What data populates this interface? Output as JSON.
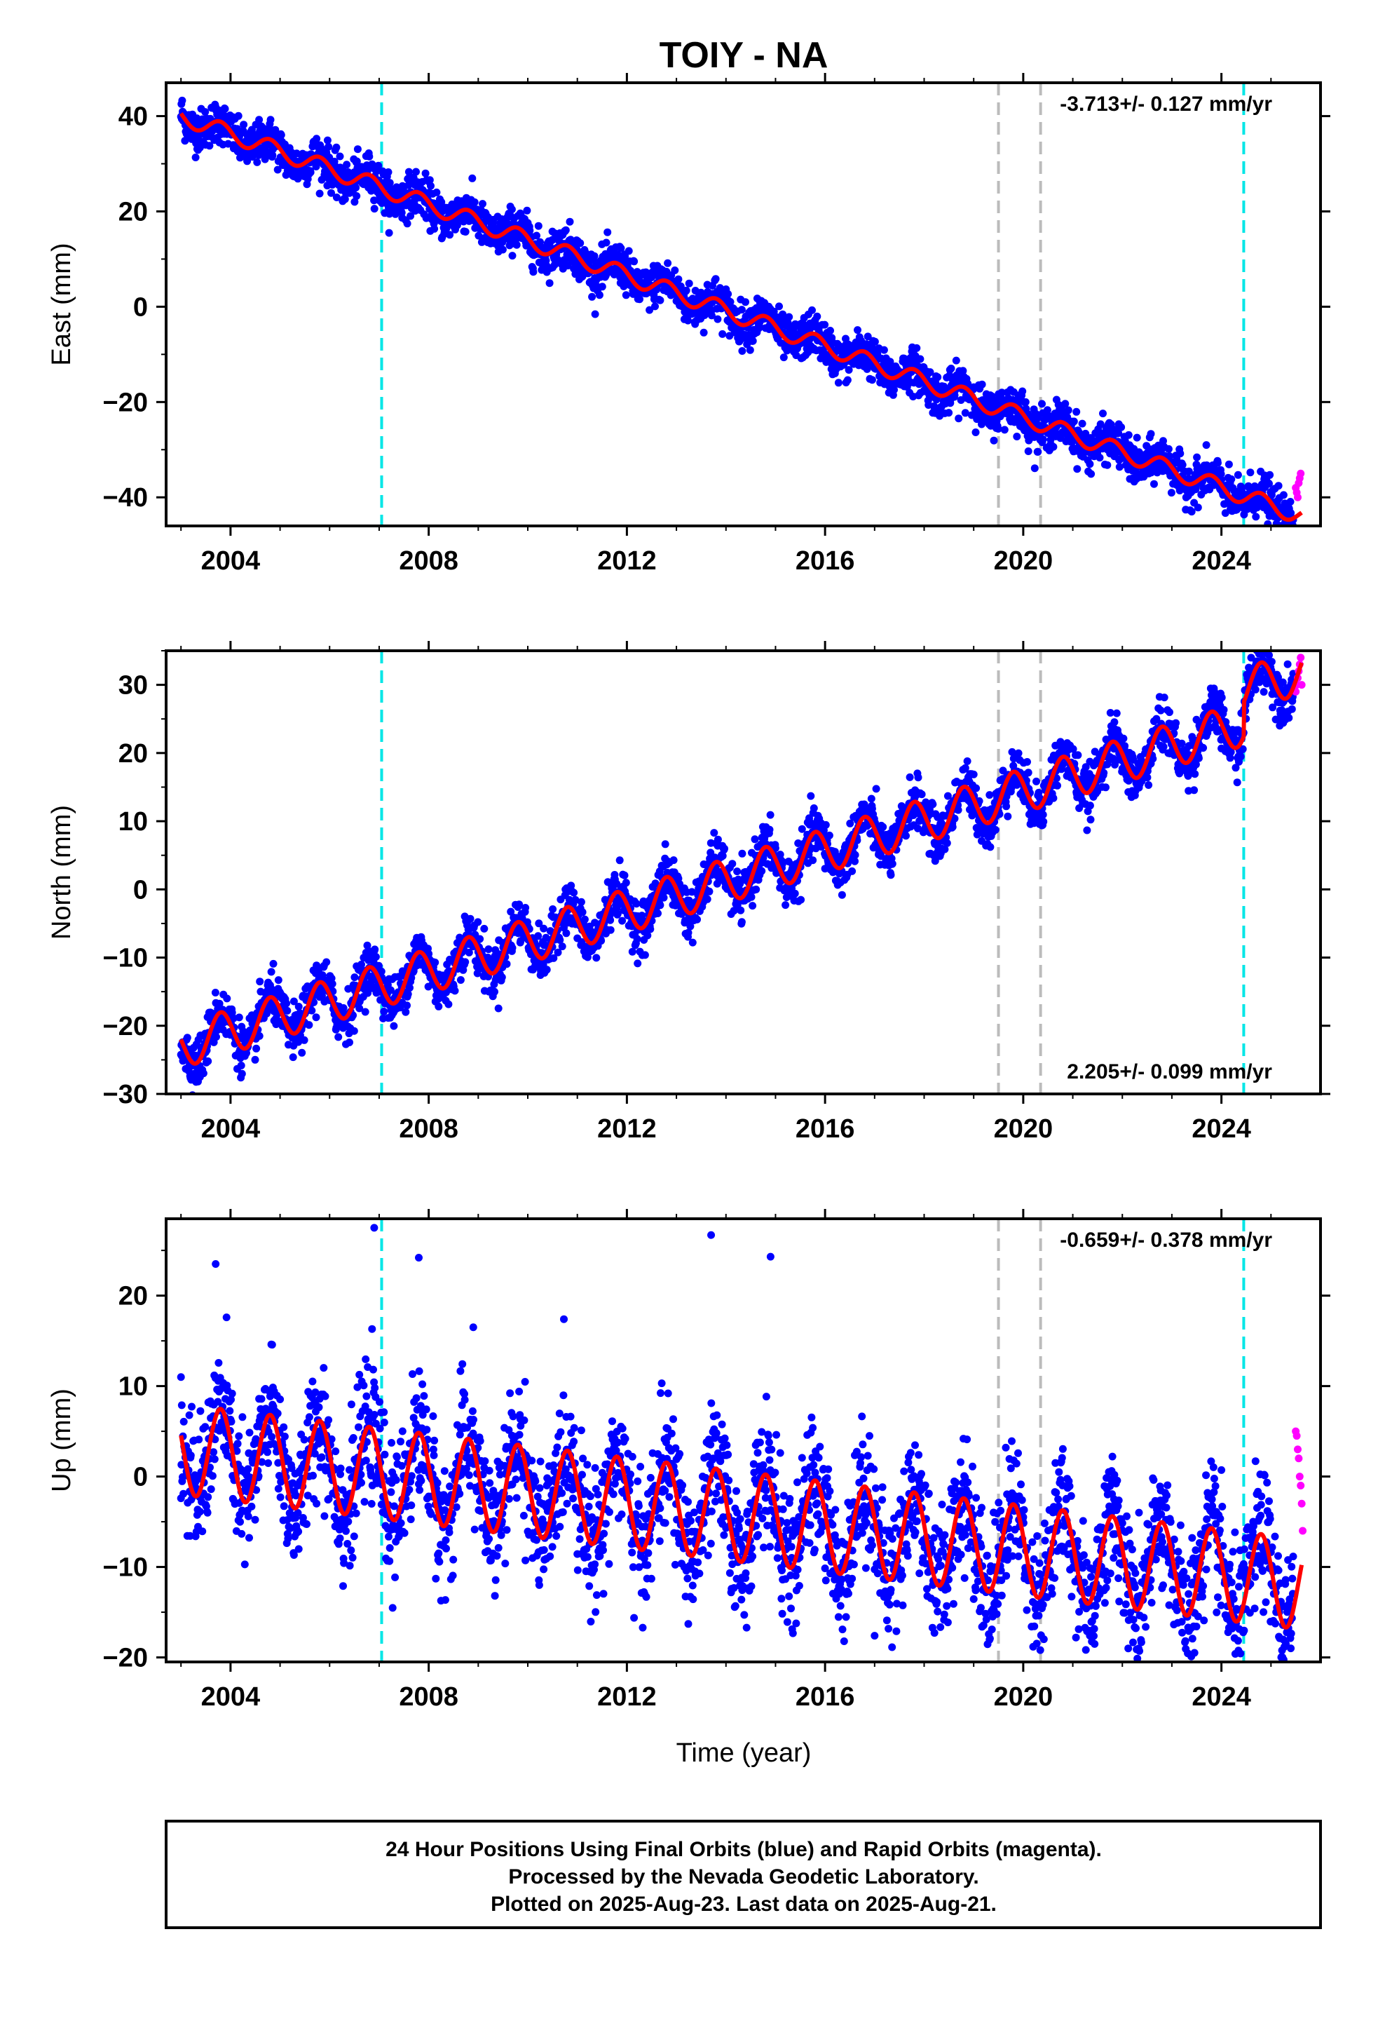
{
  "chart_data": {
    "type": "scatter",
    "title": "TOIY - NA",
    "xlabel": "Time (year)",
    "xlim": [
      2002.7,
      2026.0
    ],
    "xticks": [
      2004,
      2008,
      2012,
      2016,
      2020,
      2024
    ],
    "event_lines": [
      {
        "year": 2007.05,
        "color": "#00e6e6"
      },
      {
        "year": 2019.5,
        "color": "#bbbbbb"
      },
      {
        "year": 2020.35,
        "color": "#bbbbbb"
      },
      {
        "year": 2024.45,
        "color": "#00e6e6"
      }
    ],
    "legend": [
      "Final Orbits (blue)",
      "Rapid Orbits (magenta)",
      "model fit (red)"
    ],
    "colors": {
      "final": "#0000ff",
      "rapid": "#ff00ff",
      "model": "#ff0000",
      "frame": "#000000"
    },
    "panels": [
      {
        "name": "east",
        "ylabel": "East (mm)",
        "ylim": [
          -46,
          47
        ],
        "yticks": [
          -40,
          -20,
          0,
          20,
          40
        ],
        "rate_text": "-3.713+/- 0.127 mm/yr",
        "rate_position": "top-right",
        "model": {
          "t0": 2003.0,
          "start": 40.0,
          "rate": -3.713,
          "annual_amp": 1.8,
          "phase": 0.55,
          "steps": []
        },
        "scatter": 2.2,
        "outliers": [],
        "rapid_y": [
          -38,
          -39,
          -40,
          -37,
          -36,
          -35
        ]
      },
      {
        "name": "north",
        "ylabel": "North (mm)",
        "ylim": [
          -30,
          35
        ],
        "yticks": [
          -30,
          -20,
          -10,
          0,
          10,
          20,
          30
        ],
        "rate_text": "2.205+/- 0.099 mm/yr",
        "rate_position": "bottom-right",
        "model": {
          "t0": 2003.0,
          "start": -23.0,
          "rate": 2.205,
          "annual_amp": 3.2,
          "phase": 0.55,
          "steps": [
            {
              "year": 2024.45,
              "size": 5.0
            }
          ]
        },
        "scatter": 1.8,
        "outliers": [],
        "rapid_y": [
          29,
          30,
          31,
          32,
          33,
          34,
          30
        ]
      },
      {
        "name": "up",
        "ylabel": "Up (mm)",
        "ylim": [
          -20.5,
          28.5
        ],
        "yticks": [
          -20,
          -10,
          0,
          10,
          20
        ],
        "rate_text": "-0.659+/- 0.378 mm/yr",
        "rate_position": "top-right",
        "model": {
          "t0": 2003.0,
          "start": 3.0,
          "rate": -0.659,
          "annual_amp": 5.0,
          "phase": 0.55,
          "steps": []
        },
        "scatter": 3.5,
        "outliers": [
          [
            2006.9,
            27.5
          ],
          [
            2007.8,
            24.2
          ],
          [
            2003.7,
            23.5
          ],
          [
            2013.7,
            26.7
          ],
          [
            2014.9,
            24.3
          ],
          [
            2003.0,
            11.0
          ],
          [
            2008.9,
            16.5
          ],
          [
            2017.0,
            -17.6
          ],
          [
            2025.3,
            -18.5
          ],
          [
            2025.4,
            -19.0
          ]
        ],
        "rapid_y": [
          5,
          4.5,
          3,
          2,
          0,
          -1,
          -3,
          -6
        ]
      }
    ]
  },
  "footer": {
    "line1": "24 Hour Positions Using Final Orbits (blue) and Rapid Orbits (magenta).",
    "line2": "Processed by the Nevada Geodetic Laboratory.",
    "line3": "Plotted on 2025-Aug-23. Last data on 2025-Aug-21."
  }
}
